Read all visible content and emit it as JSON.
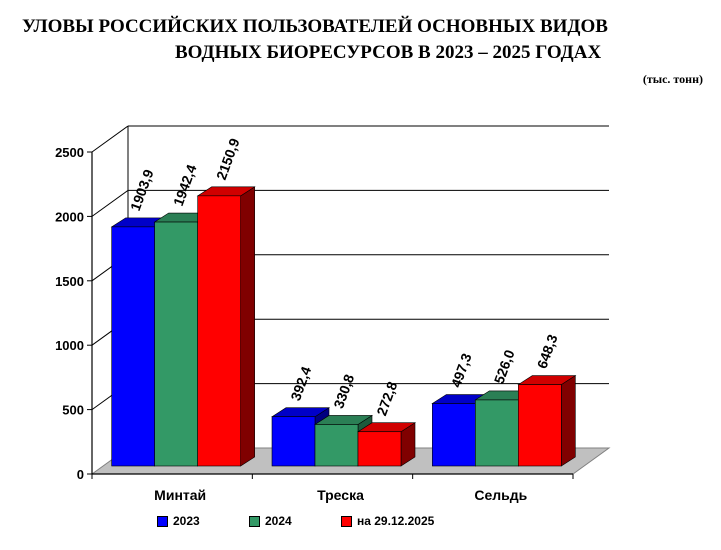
{
  "title_line1": "УЛОВЫ РОССИЙСКИХ ПОЛЬЗОВАТЕЛЕЙ ОСНОВНЫХ ВИДОВ",
  "title_line2": "ВОДНЫХ БИОРЕСУРСОВ В  2023 – 2025 ГОДАХ",
  "unit": "(тыс. тонн)",
  "chart_data": {
    "type": "bar",
    "categories": [
      "Минтай",
      "Треска",
      "Сельдь"
    ],
    "series": [
      {
        "name": "2023",
        "values": [
          1903.9,
          392.4,
          497.3
        ],
        "labels": [
          "1903,9",
          "392,4",
          "497,3"
        ],
        "color": "#0000ff",
        "side": "#000080",
        "top": "#0000c8"
      },
      {
        "name": "2024",
        "values": [
          1942.4,
          330.8,
          526.0
        ],
        "labels": [
          "1942,4",
          "330,8",
          "526,0"
        ],
        "color": "#339966",
        "side": "#1d5a3c",
        "top": "#2b7f55"
      },
      {
        "name": "на 29.12.2025",
        "values": [
          2150.9,
          272.8,
          648.3
        ],
        "labels": [
          "2150,9",
          "272,8",
          "648,3"
        ],
        "color": "#ff0000",
        "side": "#800000",
        "top": "#d00000"
      }
    ],
    "yticks": [
      0,
      500,
      1000,
      1500,
      2000,
      2500
    ],
    "ylim": [
      0,
      2500
    ],
    "grid": true,
    "legend": "bottom"
  }
}
